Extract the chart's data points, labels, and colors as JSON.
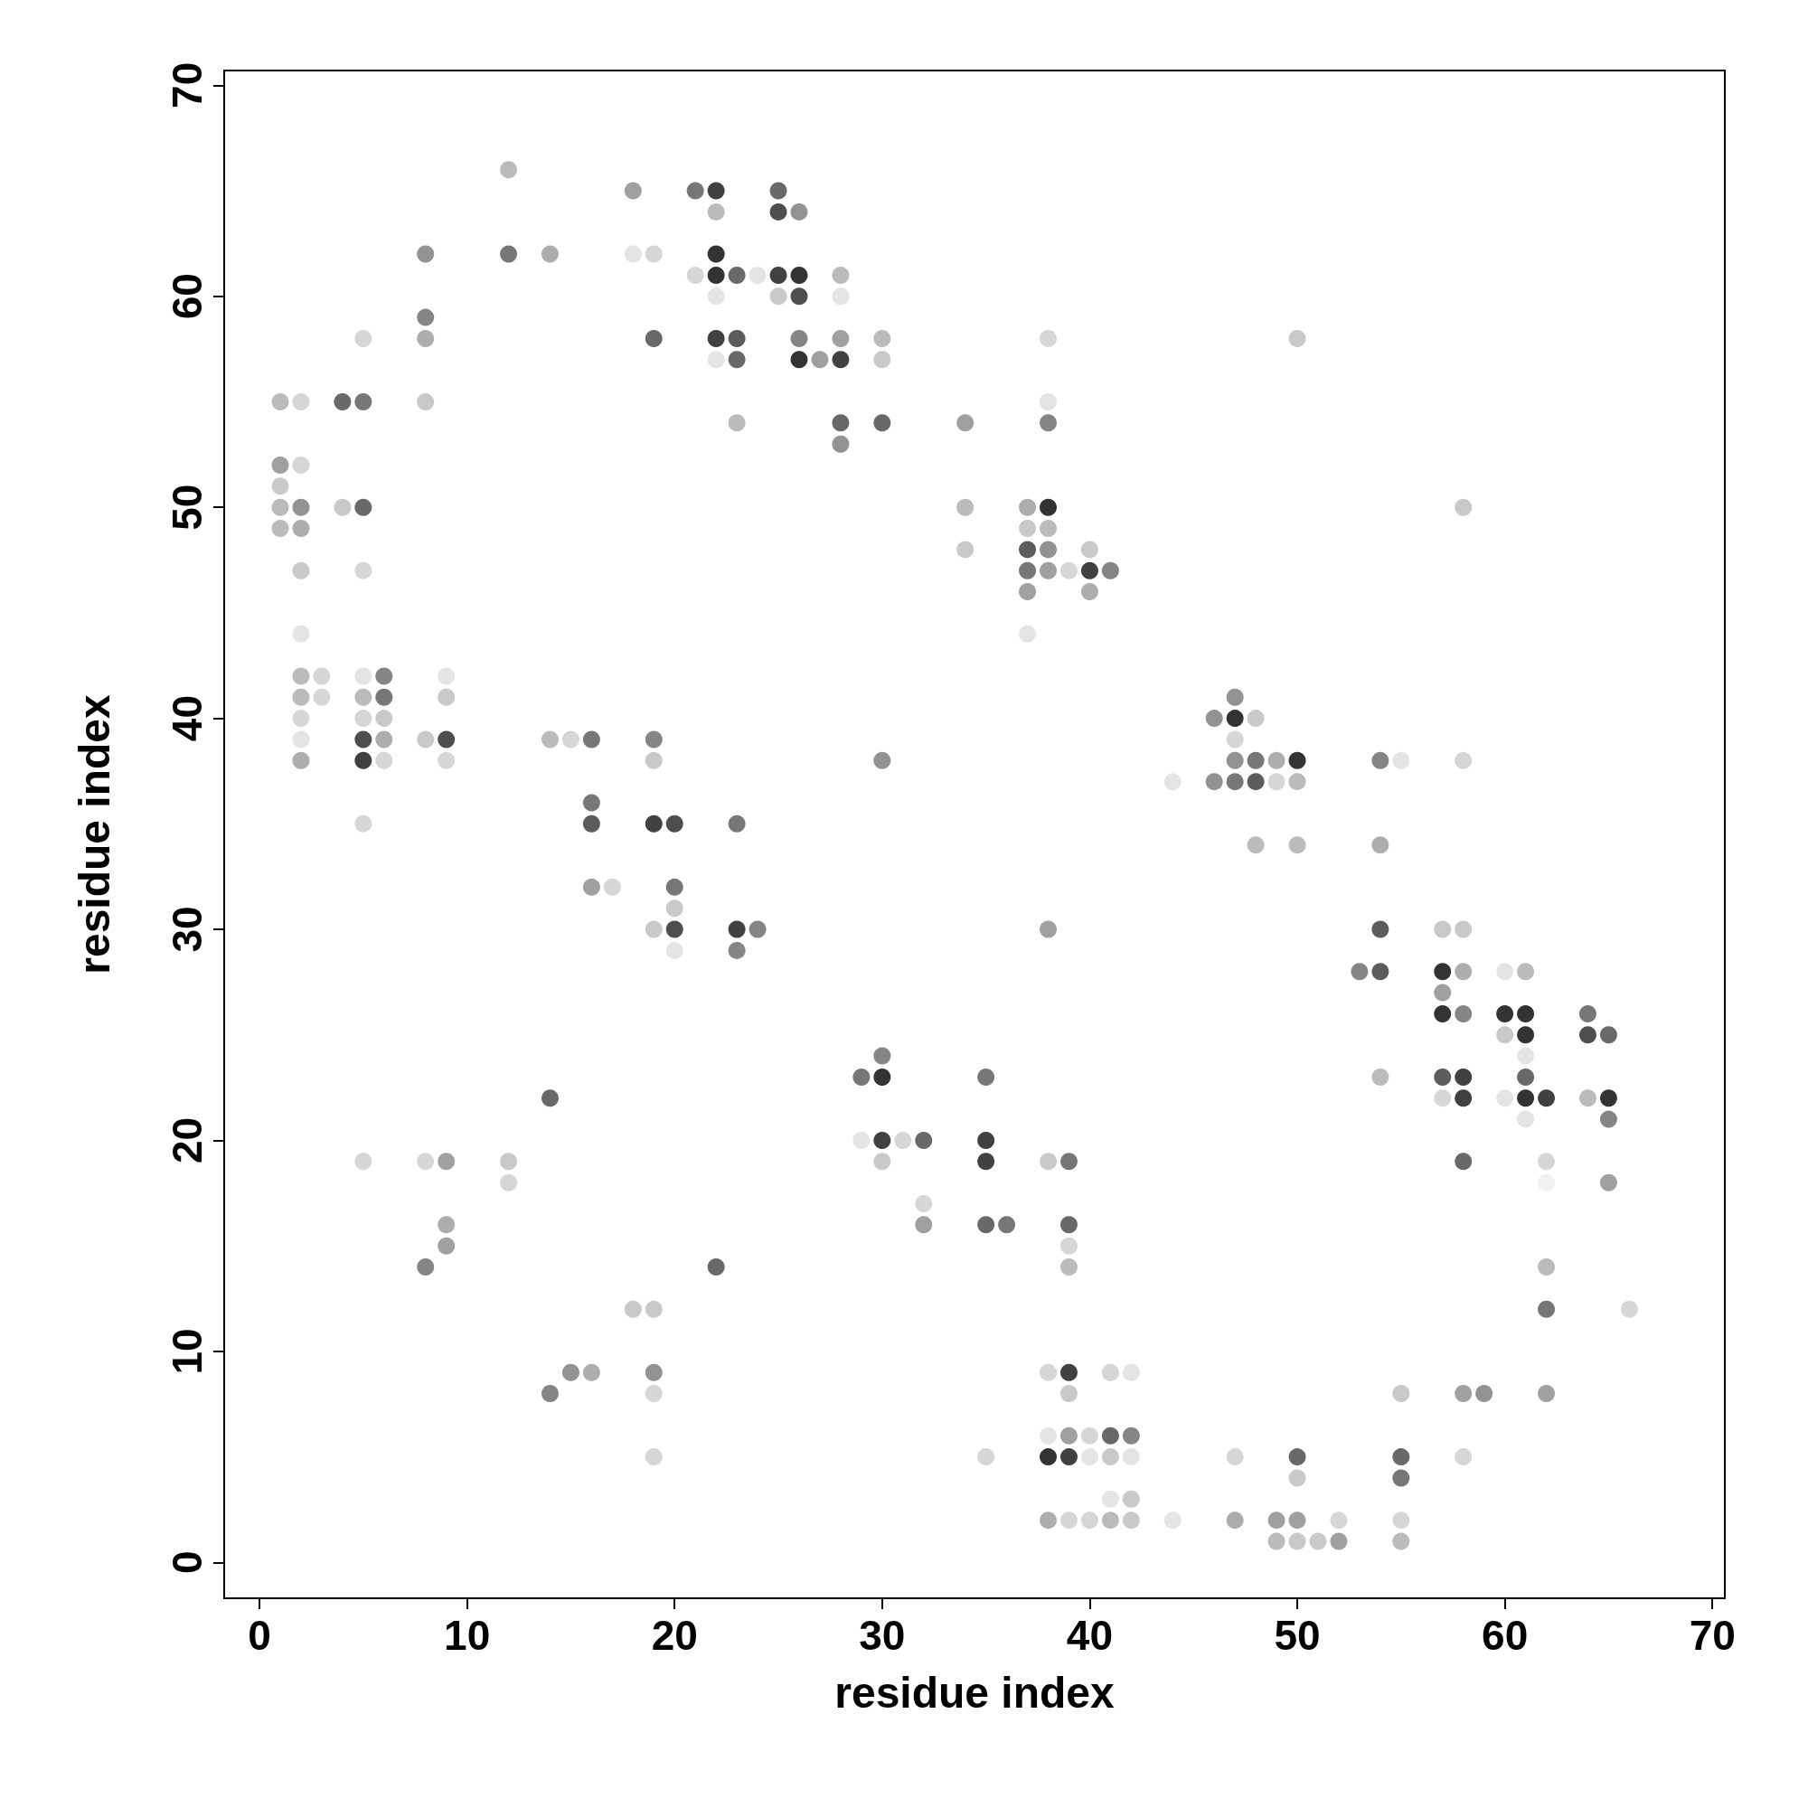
{
  "chart_data": {
    "type": "scatter",
    "xlabel": "residue index",
    "ylabel": "residue index",
    "xlim": [
      -1.7,
      70.6
    ],
    "ylim": [
      -1.7,
      70.7
    ],
    "xticks": [
      0,
      10,
      20,
      30,
      40,
      50,
      60,
      70
    ],
    "yticks": [
      0,
      10,
      20,
      30,
      40,
      50,
      60,
      70
    ],
    "grid": false,
    "marker": "circle",
    "series": [
      {
        "x": [
          1,
          2,
          1,
          2,
          1,
          1,
          2,
          1,
          2,
          2,
          2,
          2,
          3,
          2,
          3,
          2,
          2,
          2,
          4,
          5,
          5,
          4,
          5,
          5,
          5,
          6,
          5,
          6,
          5,
          6,
          5,
          6,
          5,
          6,
          5,
          8,
          8,
          8,
          8,
          8,
          9,
          9,
          9,
          9,
          12,
          12,
          14,
          14,
          15,
          16,
          16,
          16,
          16,
          17,
          18,
          18,
          19,
          19,
          19,
          19,
          19,
          20,
          20,
          20,
          20,
          19,
          20,
          21,
          22,
          22,
          22,
          21,
          22,
          23,
          24,
          22,
          22,
          23,
          22,
          23,
          23,
          25,
          25,
          26,
          25,
          26,
          25,
          26,
          26,
          28,
          28,
          28,
          26,
          27,
          28,
          28,
          28,
          30,
          30,
          30,
          23,
          23,
          24,
          23,
          30,
          34,
          34,
          34,
          38,
          38,
          38,
          37,
          38,
          37,
          38,
          37,
          38,
          40,
          37,
          38,
          39,
          40,
          41,
          37,
          40,
          37,
          46,
          47,
          47,
          48,
          47,
          47,
          48,
          49,
          50,
          46,
          47,
          48,
          49,
          50,
          44,
          48,
          50,
          50,
          54,
          55,
          58,
          58,
          54,
          54,
          53,
          54,
          38,
          57,
          58,
          57,
          58,
          57,
          57,
          58,
          60,
          61,
          60,
          61,
          60,
          61,
          61,
          57,
          58,
          61,
          54,
          57,
          58,
          60,
          61,
          62,
          61,
          64,
          64,
          65,
          64,
          65,
          65,
          62,
          62,
          65,
          58,
          62,
          62,
          66,
          58,
          59,
          62,
          55,
          58,
          29,
          30,
          30,
          29,
          30,
          31,
          32,
          30,
          32,
          32,
          35,
          35,
          35,
          35,
          36,
          38,
          39,
          39,
          39,
          39,
          14,
          22,
          5,
          8,
          9,
          12,
          12,
          9,
          9,
          8,
          18,
          19,
          14,
          15,
          16,
          19,
          19,
          19,
          38,
          39,
          39,
          41,
          42,
          38,
          39,
          40,
          41,
          42,
          38,
          39,
          40,
          41,
          42,
          35,
          41,
          42,
          38,
          39,
          40,
          41,
          42,
          44,
          47,
          47,
          49,
          50,
          49,
          50,
          51,
          50,
          50,
          52,
          52,
          55,
          55,
          55,
          55
        ],
        "values": [
          55,
          55,
          52,
          52,
          51,
          50,
          50,
          49,
          49,
          47,
          44,
          42,
          42,
          41,
          41,
          40,
          39,
          38,
          55,
          55,
          58,
          50,
          50,
          47,
          42,
          42,
          41,
          41,
          40,
          40,
          39,
          39,
          38,
          38,
          35,
          62,
          59,
          58,
          55,
          39,
          39,
          42,
          41,
          38,
          66,
          62,
          62,
          39,
          39,
          39,
          36,
          35,
          32,
          32,
          65,
          62,
          62,
          58,
          39,
          38,
          35,
          35,
          32,
          31,
          30,
          30,
          29,
          65,
          65,
          64,
          62,
          61,
          61,
          61,
          61,
          60,
          58,
          58,
          57,
          57,
          54,
          65,
          64,
          64,
          61,
          61,
          60,
          60,
          58,
          58,
          61,
          60,
          57,
          57,
          57,
          54,
          53,
          58,
          57,
          54,
          35,
          30,
          30,
          29,
          38,
          54,
          50,
          48,
          58,
          55,
          54,
          50,
          50,
          49,
          49,
          48,
          48,
          48,
          47,
          47,
          47,
          47,
          47,
          46,
          46,
          44,
          40,
          41,
          40,
          40,
          39,
          38,
          38,
          38,
          38,
          37,
          37,
          37,
          37,
          37,
          37,
          34,
          34,
          58,
          38,
          38,
          50,
          38,
          34,
          30,
          28,
          28,
          30,
          30,
          30,
          28,
          28,
          27,
          26,
          26,
          28,
          28,
          26,
          26,
          25,
          25,
          24,
          23,
          23,
          23,
          23,
          22,
          22,
          22,
          22,
          22,
          21,
          26,
          25,
          25,
          22,
          22,
          21,
          19,
          18,
          18,
          19,
          14,
          12,
          12,
          8,
          8,
          8,
          8,
          5,
          23,
          24,
          23,
          20,
          20,
          20,
          20,
          19,
          17,
          16,
          23,
          20,
          19,
          16,
          16,
          19,
          19,
          16,
          15,
          14,
          22,
          14,
          19,
          19,
          19,
          19,
          18,
          16,
          15,
          14,
          12,
          12,
          8,
          9,
          9,
          9,
          8,
          5,
          9,
          9,
          8,
          9,
          9,
          6,
          6,
          6,
          6,
          6,
          5,
          5,
          5,
          5,
          5,
          5,
          3,
          3,
          2,
          2,
          2,
          2,
          2,
          2,
          5,
          2,
          2,
          2,
          1,
          1,
          1,
          5,
          4,
          2,
          1,
          5,
          4,
          2,
          1
        ],
        "colors": [
          "#aaaaaa",
          "#cccccc",
          "#888888",
          "#cccccc",
          "#bbbbbb",
          "#aaaaaa",
          "#777777",
          "#aaaaaa",
          "#999999",
          "#bbbbbb",
          "#dddddd",
          "#aaaaaa",
          "#cccccc",
          "#aaaaaa",
          "#cccccc",
          "#cccccc",
          "#dddddd",
          "#999999",
          "#444444",
          "#555555",
          "#cccccc",
          "#bbbbbb",
          "#444444",
          "#cccccc",
          "#dddddd",
          "#666666",
          "#aaaaaa",
          "#555555",
          "#cccccc",
          "#bbbbbb",
          "#222222",
          "#999999",
          "#111111",
          "#cccccc",
          "#cccccc",
          "#777777",
          "#666666",
          "#999999",
          "#bbbbbb",
          "#bbbbbb",
          "#222222",
          "#dddddd",
          "#bbbbbb",
          "#cccccc",
          "#aaaaaa",
          "#555555",
          "#999999",
          "#aaaaaa",
          "#cccccc",
          "#555555",
          "#555555",
          "#333333",
          "#888888",
          "#cccccc",
          "#888888",
          "#dddddd",
          "#cccccc",
          "#444444",
          "#666666",
          "#bbbbbb",
          "#111111",
          "#222222",
          "#555555",
          "#bbbbbb",
          "#222222",
          "#bbbbbb",
          "#dddddd",
          "#555555",
          "#111111",
          "#aaaaaa",
          "#000000",
          "#cccccc",
          "#000000",
          "#444444",
          "#dddddd",
          "#dddddd",
          "#111111",
          "#333333",
          "#dddddd",
          "#444444",
          "#aaaaaa",
          "#444444",
          "#222222",
          "#777777",
          "#111111",
          "#000000",
          "#bbbbbb",
          "#222222",
          "#666666",
          "#888888",
          "#aaaaaa",
          "#dddddd",
          "#000000",
          "#888888",
          "#111111",
          "#444444",
          "#777777",
          "#aaaaaa",
          "#bbbbbb",
          "#444444",
          "#555555",
          "#111111",
          "#666666",
          "#666666",
          "#777777",
          "#888888",
          "#aaaaaa",
          "#bbbbbb",
          "#cccccc",
          "#dddddd",
          "#666666",
          "#999999",
          "#000000",
          "#bbbbbb",
          "#aaaaaa",
          "#333333",
          "#777777",
          "#bbbbbb",
          "#555555",
          "#888888",
          "#cccccc",
          "#111111",
          "#666666",
          "#888888",
          "#999999",
          "#dddddd",
          "#777777",
          "#777777",
          "#000000",
          "#bbbbbb",
          "#cccccc",
          "#777777",
          "#555555",
          "#999999",
          "#000000",
          "#777777",
          "#555555",
          "#333333",
          "#cccccc",
          "#aaaaaa",
          "#dddddd",
          "#aaaaaa",
          "#aaaaaa",
          "#bbbbbb",
          "#666666",
          "#dddddd",
          "#bbbbbb",
          "#cccccc",
          "#999999",
          "#333333",
          "#666666",
          "#333333",
          "#888888",
          "#bbbbbb",
          "#bbbbbb",
          "#000000",
          "#999999",
          "#888888",
          "#000000",
          "#666666",
          "#dddddd",
          "#aaaaaa",
          "#000000",
          "#000000",
          "#bbbbbb",
          "#000000",
          "#dddddd",
          "#333333",
          "#111111",
          "#444444",
          "#aaaaaa",
          "#cccccc",
          "#111111",
          "#dddddd",
          "#000000",
          "#111111",
          "#dddddd",
          "#555555",
          "#222222",
          "#444444",
          "#aaaaaa",
          "#000000",
          "#666666",
          "#cccccc",
          "#eeeeee",
          "#888888",
          "#444444",
          "#aaaaaa",
          "#555555",
          "#cccccc",
          "#888888",
          "#777777",
          "#888888",
          "#bbbbbb",
          "#cccccc",
          "#555555",
          "#666666",
          "#000000",
          "#dddddd",
          "#111111",
          "#cccccc",
          "#444444",
          "#bbbbbb",
          "#cccccc",
          "#888888",
          "#555555",
          "#111111",
          "#111111",
          "#444444",
          "#555555",
          "#bbbbbb",
          "#555555",
          "#444444",
          "#cccccc",
          "#aaaaaa",
          "#444444",
          "#444444",
          "#cccccc",
          "#cccccc",
          "#888888",
          "#bbbbbb",
          "#cccccc",
          "#999999",
          "#888888",
          "#666666",
          "#bbbbbb",
          "#bbbbbb",
          "#666666",
          "#777777",
          "#999999",
          "#777777",
          "#cccccc",
          "#cccccc",
          "#cccccc",
          "#111111",
          "#bbbbbb",
          "#cccccc",
          "#dddddd",
          "#dddddd",
          "#888888",
          "#cccccc",
          "#444444",
          "#666666",
          "#000000",
          "#111111",
          "#dddddd",
          "#bbbbbb",
          "#dddddd",
          "#cccccc",
          "#dddddd",
          "#bbbbbb",
          "#999999",
          "#cccccc",
          "#cccccc",
          "#aaaaaa",
          "#bbbbbb",
          "#dddddd",
          "#cccccc",
          "#999999",
          "#888888",
          "#888888",
          "#aaaaaa",
          "#bbbbbb",
          "#bbbbbb",
          "#444444",
          "#bbbbbb",
          "#cccccc",
          "#888888",
          "#444444",
          "#555555",
          "#cccccc",
          "#aaaaaa"
        ]
      }
    ]
  }
}
